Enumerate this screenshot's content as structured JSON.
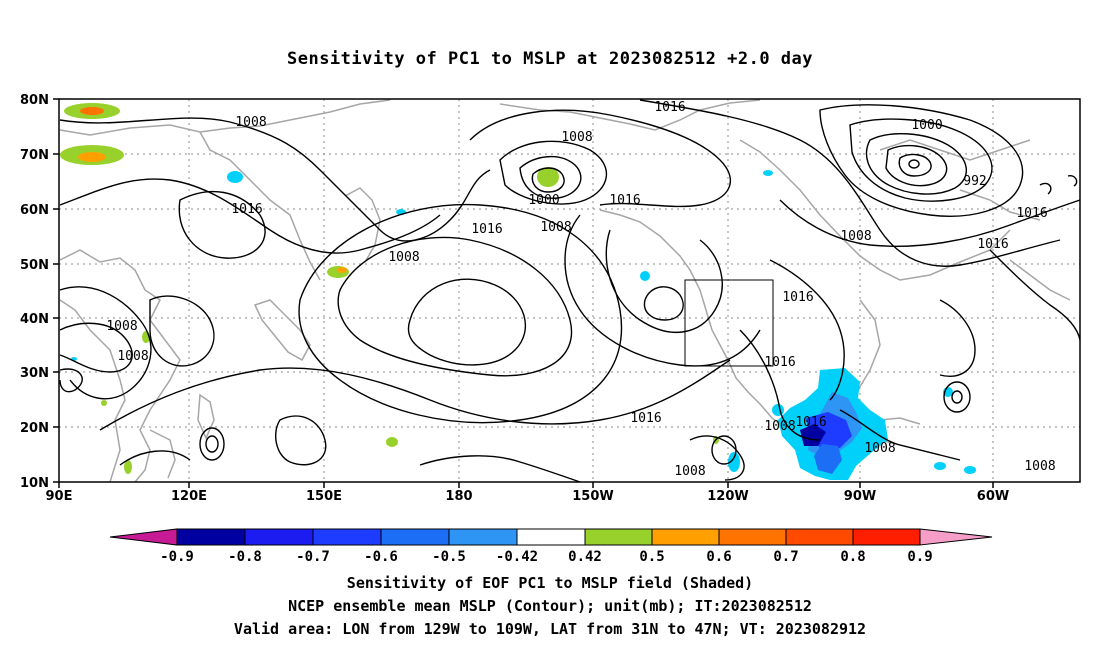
{
  "title": "Sensitivity of PC1 to MSLP at 2023082512 +2.0 day",
  "map": {
    "lat_labels": [
      "80N",
      "70N",
      "60N",
      "50N",
      "40N",
      "30N",
      "20N",
      "10N"
    ],
    "lon_labels": [
      "90E",
      "120E",
      "150E",
      "180",
      "150W",
      "120W",
      "90W",
      "60W"
    ],
    "valid_box": {
      "lon_from": "129W",
      "lon_to": "109W",
      "lat_from": "31N",
      "lat_to": "47N"
    },
    "contour_labels": [
      "1016",
      "1008",
      "1008",
      "1016",
      "1008",
      "1000",
      "1008",
      "1016",
      "1016",
      "1008",
      "1000",
      "992",
      "1016",
      "1008",
      "1016",
      "1016",
      "1008",
      "1008",
      "1016",
      "1016",
      "1016",
      "1008",
      "1008",
      "1008"
    ],
    "contour_color": "#000000",
    "coastline_color": "#a6a6a6",
    "grid": "dotted"
  },
  "colorbar": {
    "labels": [
      "-0.9",
      "-0.8",
      "-0.7",
      "-0.6",
      "-0.5",
      "-0.42",
      "0.42",
      "0.5",
      "0.6",
      "0.7",
      "0.8",
      "0.9"
    ],
    "colors": [
      "#c71b96",
      "#0000a0",
      "#1c1cf0",
      "#1e3cff",
      "#1c6ef5",
      "#2f95f5",
      "#00d0fa",
      "#ffffff",
      "#98d12b",
      "#ffa000",
      "#ff7300",
      "#ff4a00",
      "#ff1e00",
      "#ff0000",
      "#f79ec8"
    ]
  },
  "captions": {
    "line1": "Sensitivity of EOF PC1 to MSLP field (Shaded)",
    "line2": "NCEP ensemble mean MSLP (Contour); unit(mb); IT:2023082512",
    "line3": "Valid area: LON from 129W to 109W, LAT from 31N to 47N; VT: 2023082912"
  }
}
